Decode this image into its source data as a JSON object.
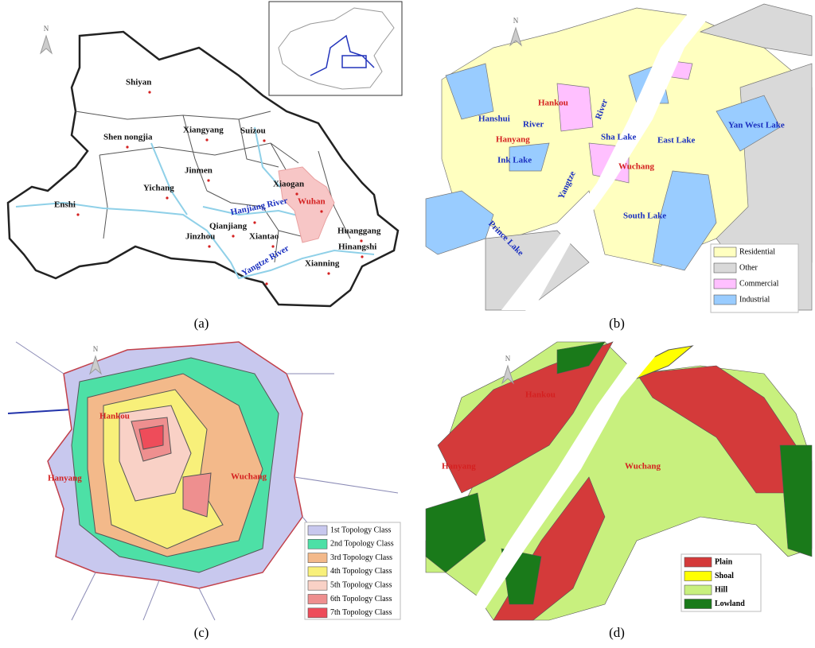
{
  "panels": [
    {
      "caption": "(a)",
      "north": "N",
      "labels": [
        "Shiyan",
        "Shen nongjia",
        "Xiangyang",
        "Suizou",
        "Jinmen",
        "Xiaogan",
        "Yichang",
        "Wuhan",
        "Enshi",
        "Hanjiang River",
        "Qianjiang",
        "Jinzhou",
        "Xiantao",
        "Huanggang",
        "Hinangshi",
        "Yangtze River",
        "Xianning"
      ],
      "legend": []
    },
    {
      "caption": "(b)",
      "north": "N",
      "labels": [
        "Hankou",
        "Hanshui",
        "River",
        "River",
        "Hanyang",
        "Ink Lake",
        "Sha Lake",
        "East Lake",
        "Yan West Lake",
        "Wuchang",
        "Yangtze",
        "Prince Lake",
        "South Lake"
      ],
      "legend": [
        {
          "name": "Residential",
          "color": "#ffffc0"
        },
        {
          "name": "Other",
          "color": "#d9d9d9"
        },
        {
          "name": "Commercial",
          "color": "#ffc0ff"
        },
        {
          "name": "Industrial",
          "color": "#99ccff"
        }
      ]
    },
    {
      "caption": "(c)",
      "north": "N",
      "labels": [
        "Hankou",
        "Hanyang",
        "Wuchang"
      ],
      "legend": [
        {
          "name": "1st Topology Class",
          "color": "#c8c8ee"
        },
        {
          "name": "2nd Topology Class",
          "color": "#4de0a6"
        },
        {
          "name": "3rd Topology Class",
          "color": "#f3b98a"
        },
        {
          "name": "4th Topology Class",
          "color": "#f8f07a"
        },
        {
          "name": "5th Topology Class",
          "color": "#f9d1c6"
        },
        {
          "name": "6th Topology Class",
          "color": "#ee8f8f"
        },
        {
          "name": "7th Topology Class",
          "color": "#ee4c5a"
        }
      ]
    },
    {
      "caption": "(d)",
      "north": "N",
      "labels": [
        "Hankou",
        "Hanyang",
        "Wuchang"
      ],
      "legend": [
        {
          "name": "Plain",
          "color": "#d43a3a"
        },
        {
          "name": "Shoal",
          "color": "#ffff00"
        },
        {
          "name": "Hill",
          "color": "#c8f07e"
        },
        {
          "name": "Lowland",
          "color": "#1a7a1a"
        }
      ]
    }
  ]
}
